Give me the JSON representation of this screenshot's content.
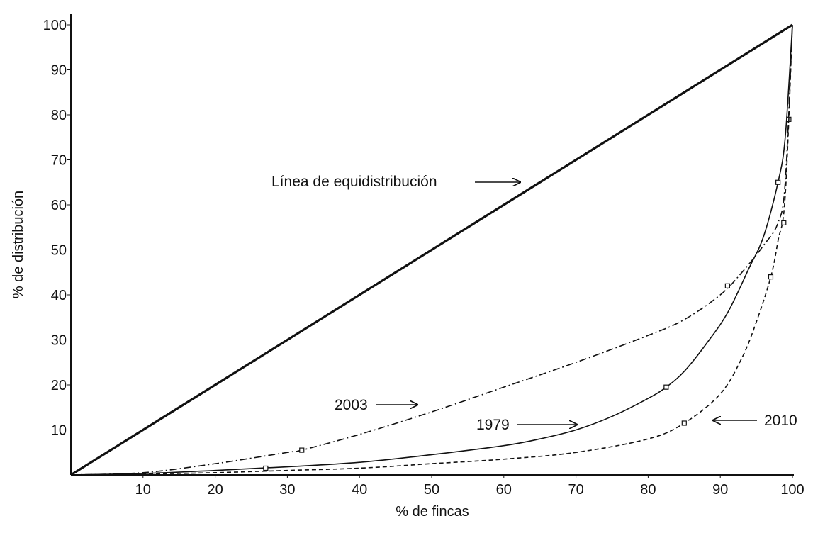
{
  "chart_data": {
    "type": "line",
    "xlabel": "% de fincas",
    "ylabel": "% de distribución",
    "xlim": [
      0,
      100
    ],
    "ylim": [
      0,
      100
    ],
    "x_ticks": [
      "10",
      "20",
      "30",
      "40",
      "50",
      "60",
      "70",
      "80",
      "90",
      "100"
    ],
    "y_ticks": [
      "10",
      "20",
      "30",
      "40",
      "50",
      "60",
      "70",
      "80",
      "90",
      "100"
    ],
    "grid": false,
    "series": [
      {
        "name": "Línea de equidistribución",
        "style": "solid-thick",
        "points": [
          [
            0,
            0
          ],
          [
            100,
            100
          ]
        ]
      },
      {
        "name": "1979",
        "style": "solid",
        "points": [
          [
            0,
            0
          ],
          [
            10,
            0.3
          ],
          [
            20,
            1
          ],
          [
            30,
            1.8
          ],
          [
            40,
            2.8
          ],
          [
            50,
            4.5
          ],
          [
            60,
            6.5
          ],
          [
            65,
            8
          ],
          [
            70,
            10
          ],
          [
            75,
            13
          ],
          [
            80,
            17
          ],
          [
            82.5,
            19.5
          ],
          [
            85,
            23
          ],
          [
            88,
            29
          ],
          [
            91,
            36
          ],
          [
            94,
            46
          ],
          [
            96,
            53
          ],
          [
            98,
            65
          ],
          [
            99,
            75
          ],
          [
            100,
            100
          ]
        ],
        "markers": [
          [
            27,
            1.5
          ],
          [
            82.5,
            19.5
          ],
          [
            98,
            65
          ]
        ]
      },
      {
        "name": "2003",
        "style": "dash-dot",
        "points": [
          [
            0,
            0
          ],
          [
            10,
            0.5
          ],
          [
            20,
            2.5
          ],
          [
            30,
            5
          ],
          [
            32,
            5.5
          ],
          [
            40,
            9
          ],
          [
            50,
            14
          ],
          [
            60,
            19.5
          ],
          [
            70,
            25
          ],
          [
            80,
            31
          ],
          [
            85,
            34.5
          ],
          [
            90,
            40
          ],
          [
            93,
            45
          ],
          [
            96,
            51
          ],
          [
            98,
            56
          ],
          [
            99,
            65
          ],
          [
            100,
            100
          ]
        ],
        "markers": [
          [
            32,
            5.5
          ],
          [
            91,
            42
          ],
          [
            99.5,
            79
          ]
        ]
      },
      {
        "name": "2010",
        "style": "dashed",
        "points": [
          [
            0,
            0
          ],
          [
            10,
            0.2
          ],
          [
            20,
            0.5
          ],
          [
            30,
            1
          ],
          [
            40,
            1.5
          ],
          [
            50,
            2.5
          ],
          [
            60,
            3.5
          ],
          [
            70,
            5
          ],
          [
            80,
            8
          ],
          [
            85,
            11.5
          ],
          [
            90,
            18
          ],
          [
            93,
            26
          ],
          [
            95,
            34
          ],
          [
            97,
            44
          ],
          [
            98,
            52
          ],
          [
            99,
            62
          ],
          [
            100,
            100
          ]
        ],
        "markers": [
          [
            85,
            11.5
          ],
          [
            97,
            44
          ],
          [
            98.8,
            56
          ]
        ]
      }
    ],
    "annotations": [
      {
        "text": "Línea de equidistribución",
        "arrow": "right"
      },
      {
        "text": "2003",
        "arrow": "right"
      },
      {
        "text": "1979",
        "arrow": "right"
      },
      {
        "text": "2010",
        "arrow": "left"
      }
    ]
  }
}
